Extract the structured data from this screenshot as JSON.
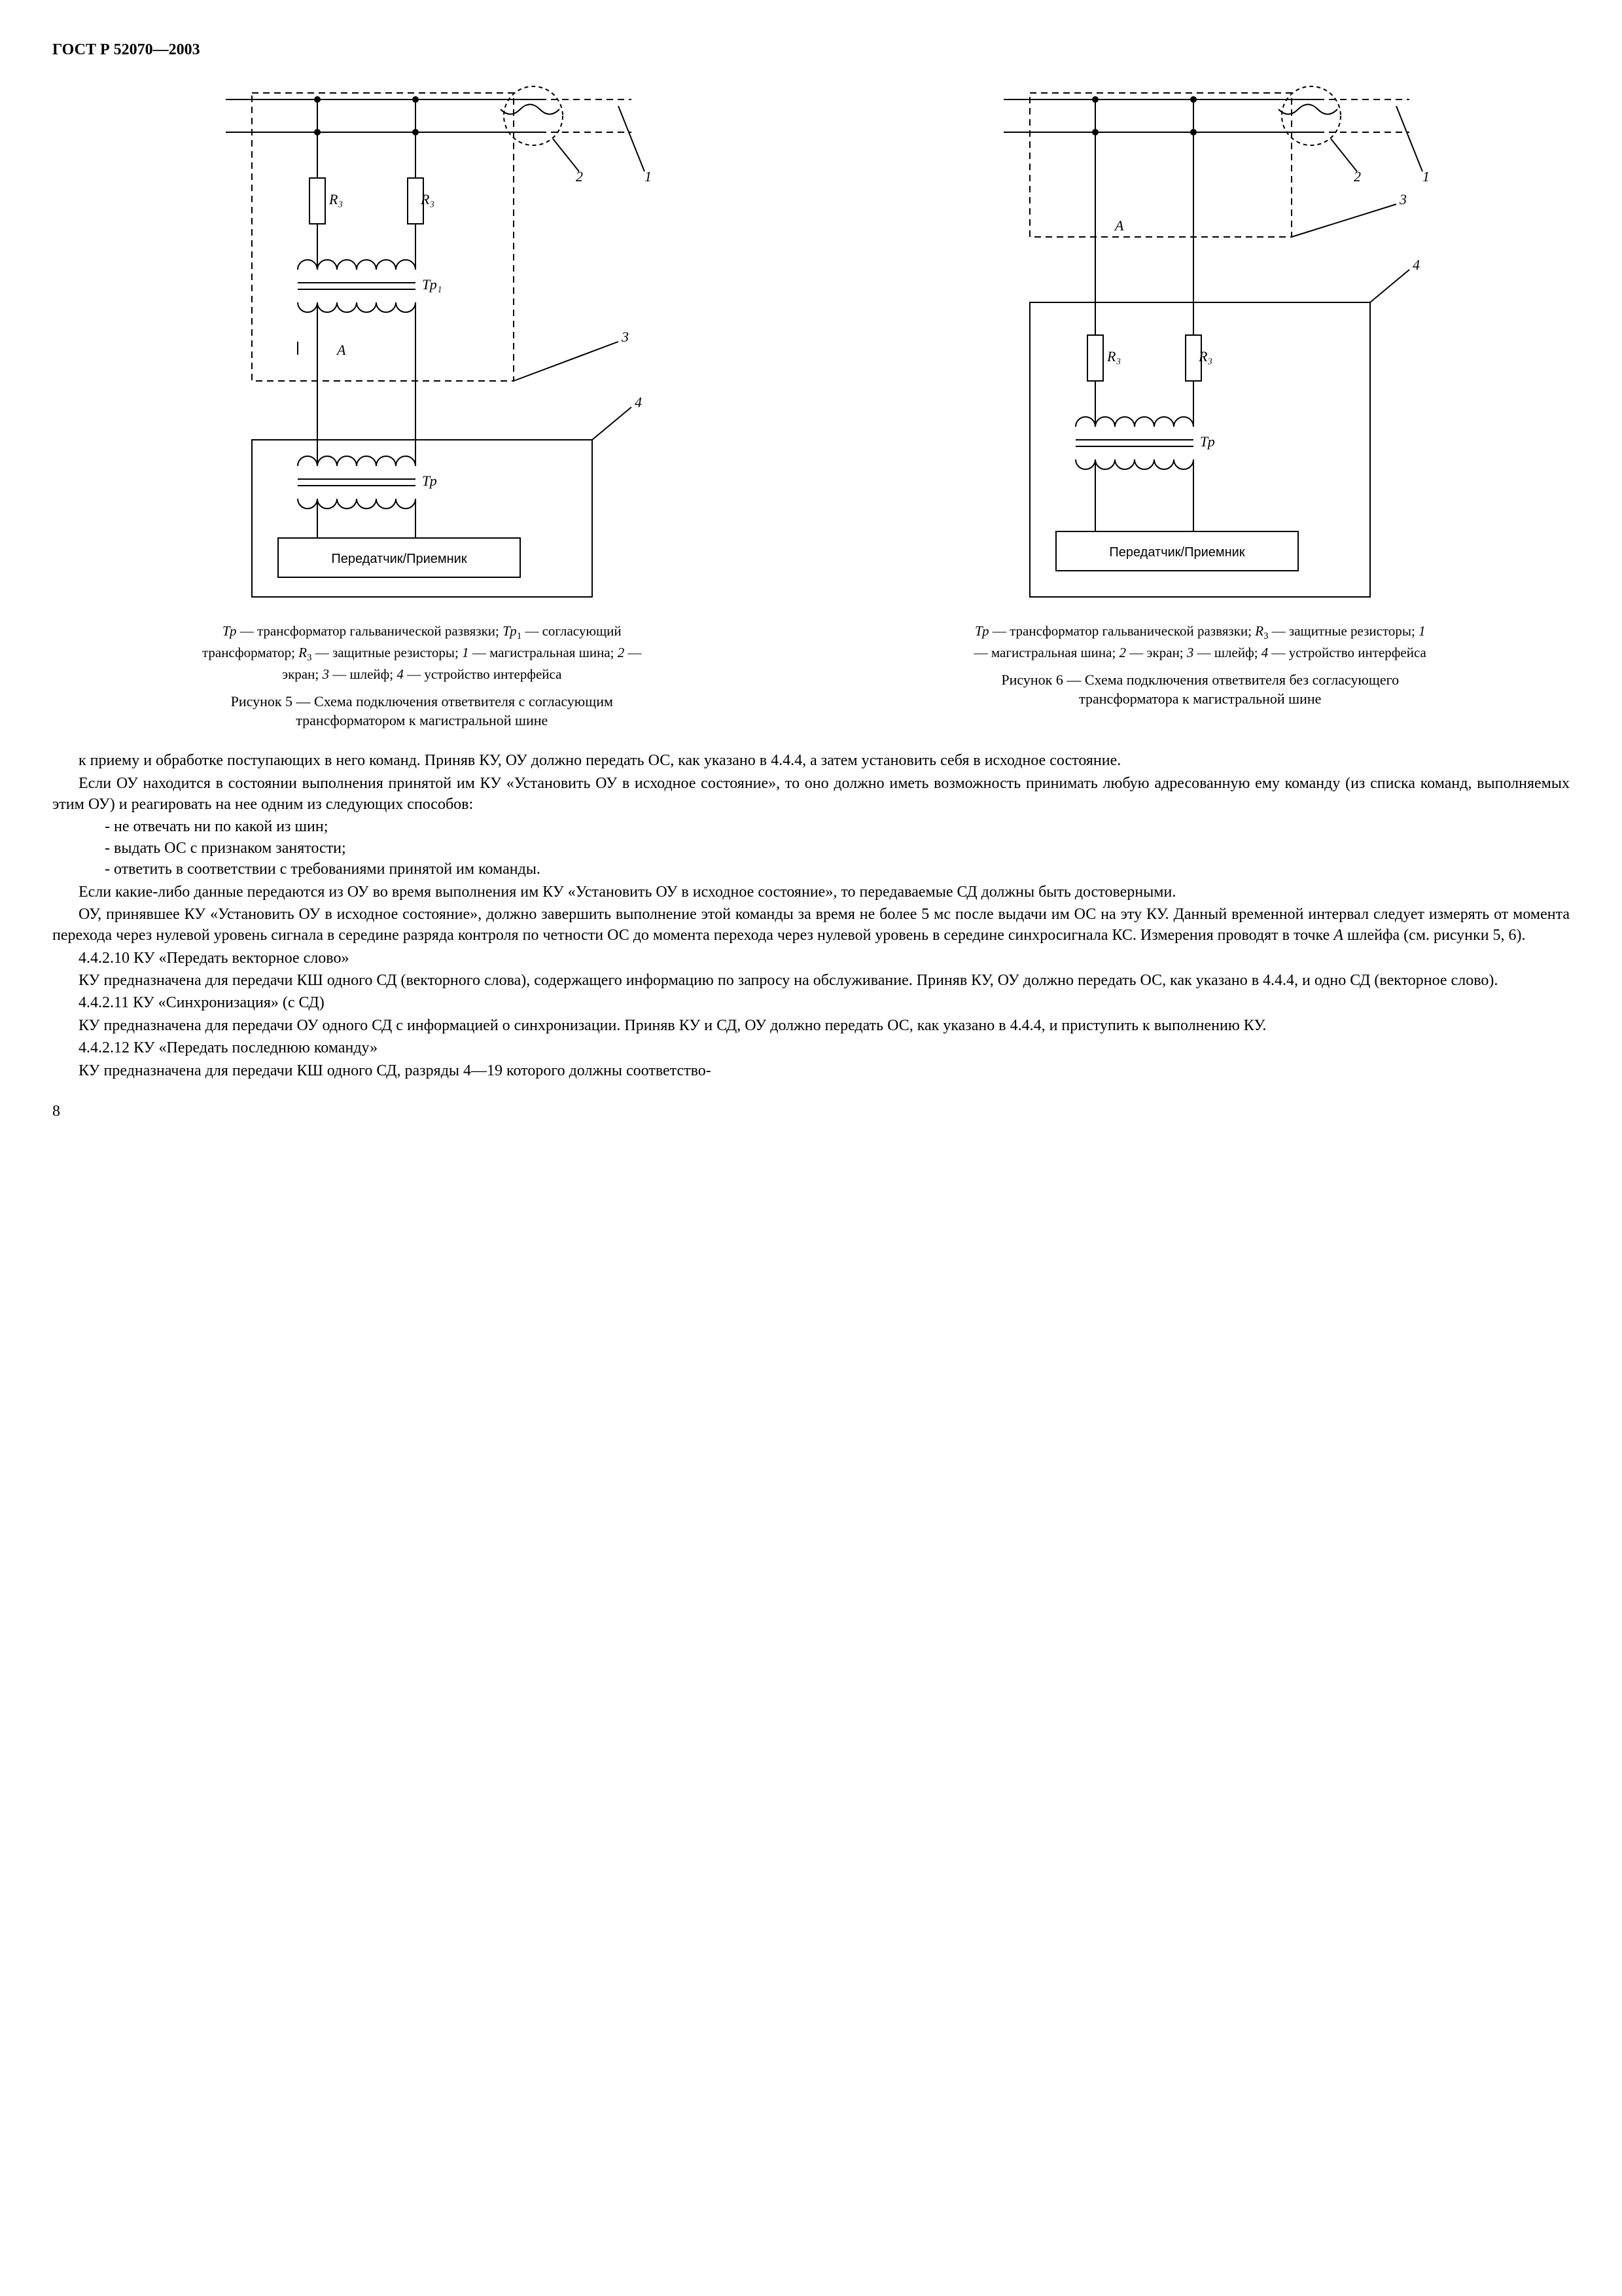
{
  "header": "ГОСТ Р 52070—2003",
  "page_number": "8",
  "figure5": {
    "legend_html": "<em class='it'>Тр</em> — трансформатор гальванической развязки; <em class='it'>Тр</em><sub>1</sub> — согласующий трансформатор; <em class='it'>R</em><sub>3</sub> — защитные резисторы; <em class='it'>1</em> — магистральная шина; <em class='it'>2</em> — экран; <em class='it'>3</em> — шлейф; <em class='it'>4</em> — устройство интерфейса",
    "caption": "Рисунок 5 — Схема подключения ответвителя с согласующим трансформатором к магистральной шине",
    "labels": {
      "R3": "R₃",
      "Tp1": "Тр₁",
      "Tp": "Тр",
      "A": "А",
      "box": "Передатчик/Приемник",
      "n1": "1",
      "n2": "2",
      "n3": "3",
      "n4": "4"
    }
  },
  "figure6": {
    "legend_html": "<em class='it'>Тр</em> — трансформатор гальванической развязки; <em class='it'>R</em><sub>3</sub> — защитные резисторы; <em class='it'>1</em> — магистральная шина; <em class='it'>2</em> — экран; <em class='it'>3</em> — шлейф; <em class='it'>4</em> — устройство интерфейса",
    "caption": "Рисунок 6 — Схема подключения ответвителя без согласующего трансформатора к магистральной шине",
    "labels": {
      "R3": "R₃",
      "Tp": "Тр",
      "A": "А",
      "box": "Передатчик/Приемник",
      "n1": "1",
      "n2": "2",
      "n3": "3",
      "n4": "4"
    }
  },
  "paragraphs": [
    "к приему и обработке поступающих в него команд. Приняв КУ, ОУ должно передать ОС, как указано в 4.4.4, а затем установить себя в исходное состояние.",
    "Если ОУ находится в состоянии выполнения принятой им КУ «Установить ОУ в исходное состояние», то оно должно иметь возможность принимать любую адресованную ему команду (из списка команд, выполняемых этим ОУ) и реагировать на нее одним из следующих способов:"
  ],
  "list1": [
    "не отвечать ни по какой из шин;",
    "выдать ОС с признаком занятости;",
    "ответить в соответствии с требованиями принятой им команды."
  ],
  "paragraphs2": [
    "Если какие-либо данные передаются из ОУ во время выполнения им КУ «Установить ОУ в исходное состояние», то передаваемые СД должны быть достоверными.",
    "ОУ, принявшее КУ «Установить ОУ в исходное состояние», должно завершить выполнение этой команды за время не более 5 мс после выдачи им ОС на эту КУ. Данный временной интервал следует измерять от момента перехода через нулевой уровень сигнала в середине разряда контроля по четности ОС до момента перехода через нулевой уровень в середине синхросигнала КС. Измерения проводят в точке <em class='it'>А</em> шлейфа (см. рисунки 5, 6).",
    "4.4.2.10 КУ «Передать векторное слово»",
    "КУ предназначена для передачи КШ одного СД (векторного слова), содержащего информацию по запросу на обслуживание. Приняв КУ, ОУ должно передать ОС, как указано в 4.4.4, и одно СД (векторное слово).",
    "4.4.2.11 КУ «Синхронизация» (с СД)",
    "КУ предназначена для передачи ОУ одного СД с информацией о синхронизации. Приняв КУ и СД, ОУ должно передать ОС, как указано в 4.4.4, и приступить к выполнению КУ.",
    "4.4.2.12 КУ «Передать последнюю команду»",
    "КУ предназначена для передачи КШ одного СД, разряды 4—19 которого должны соответство-"
  ],
  "style": {
    "stroke": "#000000",
    "stroke_width": 2,
    "dash": "10,7",
    "font_diagram": "italic 20px 'Times New Roman'",
    "font_box": "20px Arial, sans-serif"
  }
}
